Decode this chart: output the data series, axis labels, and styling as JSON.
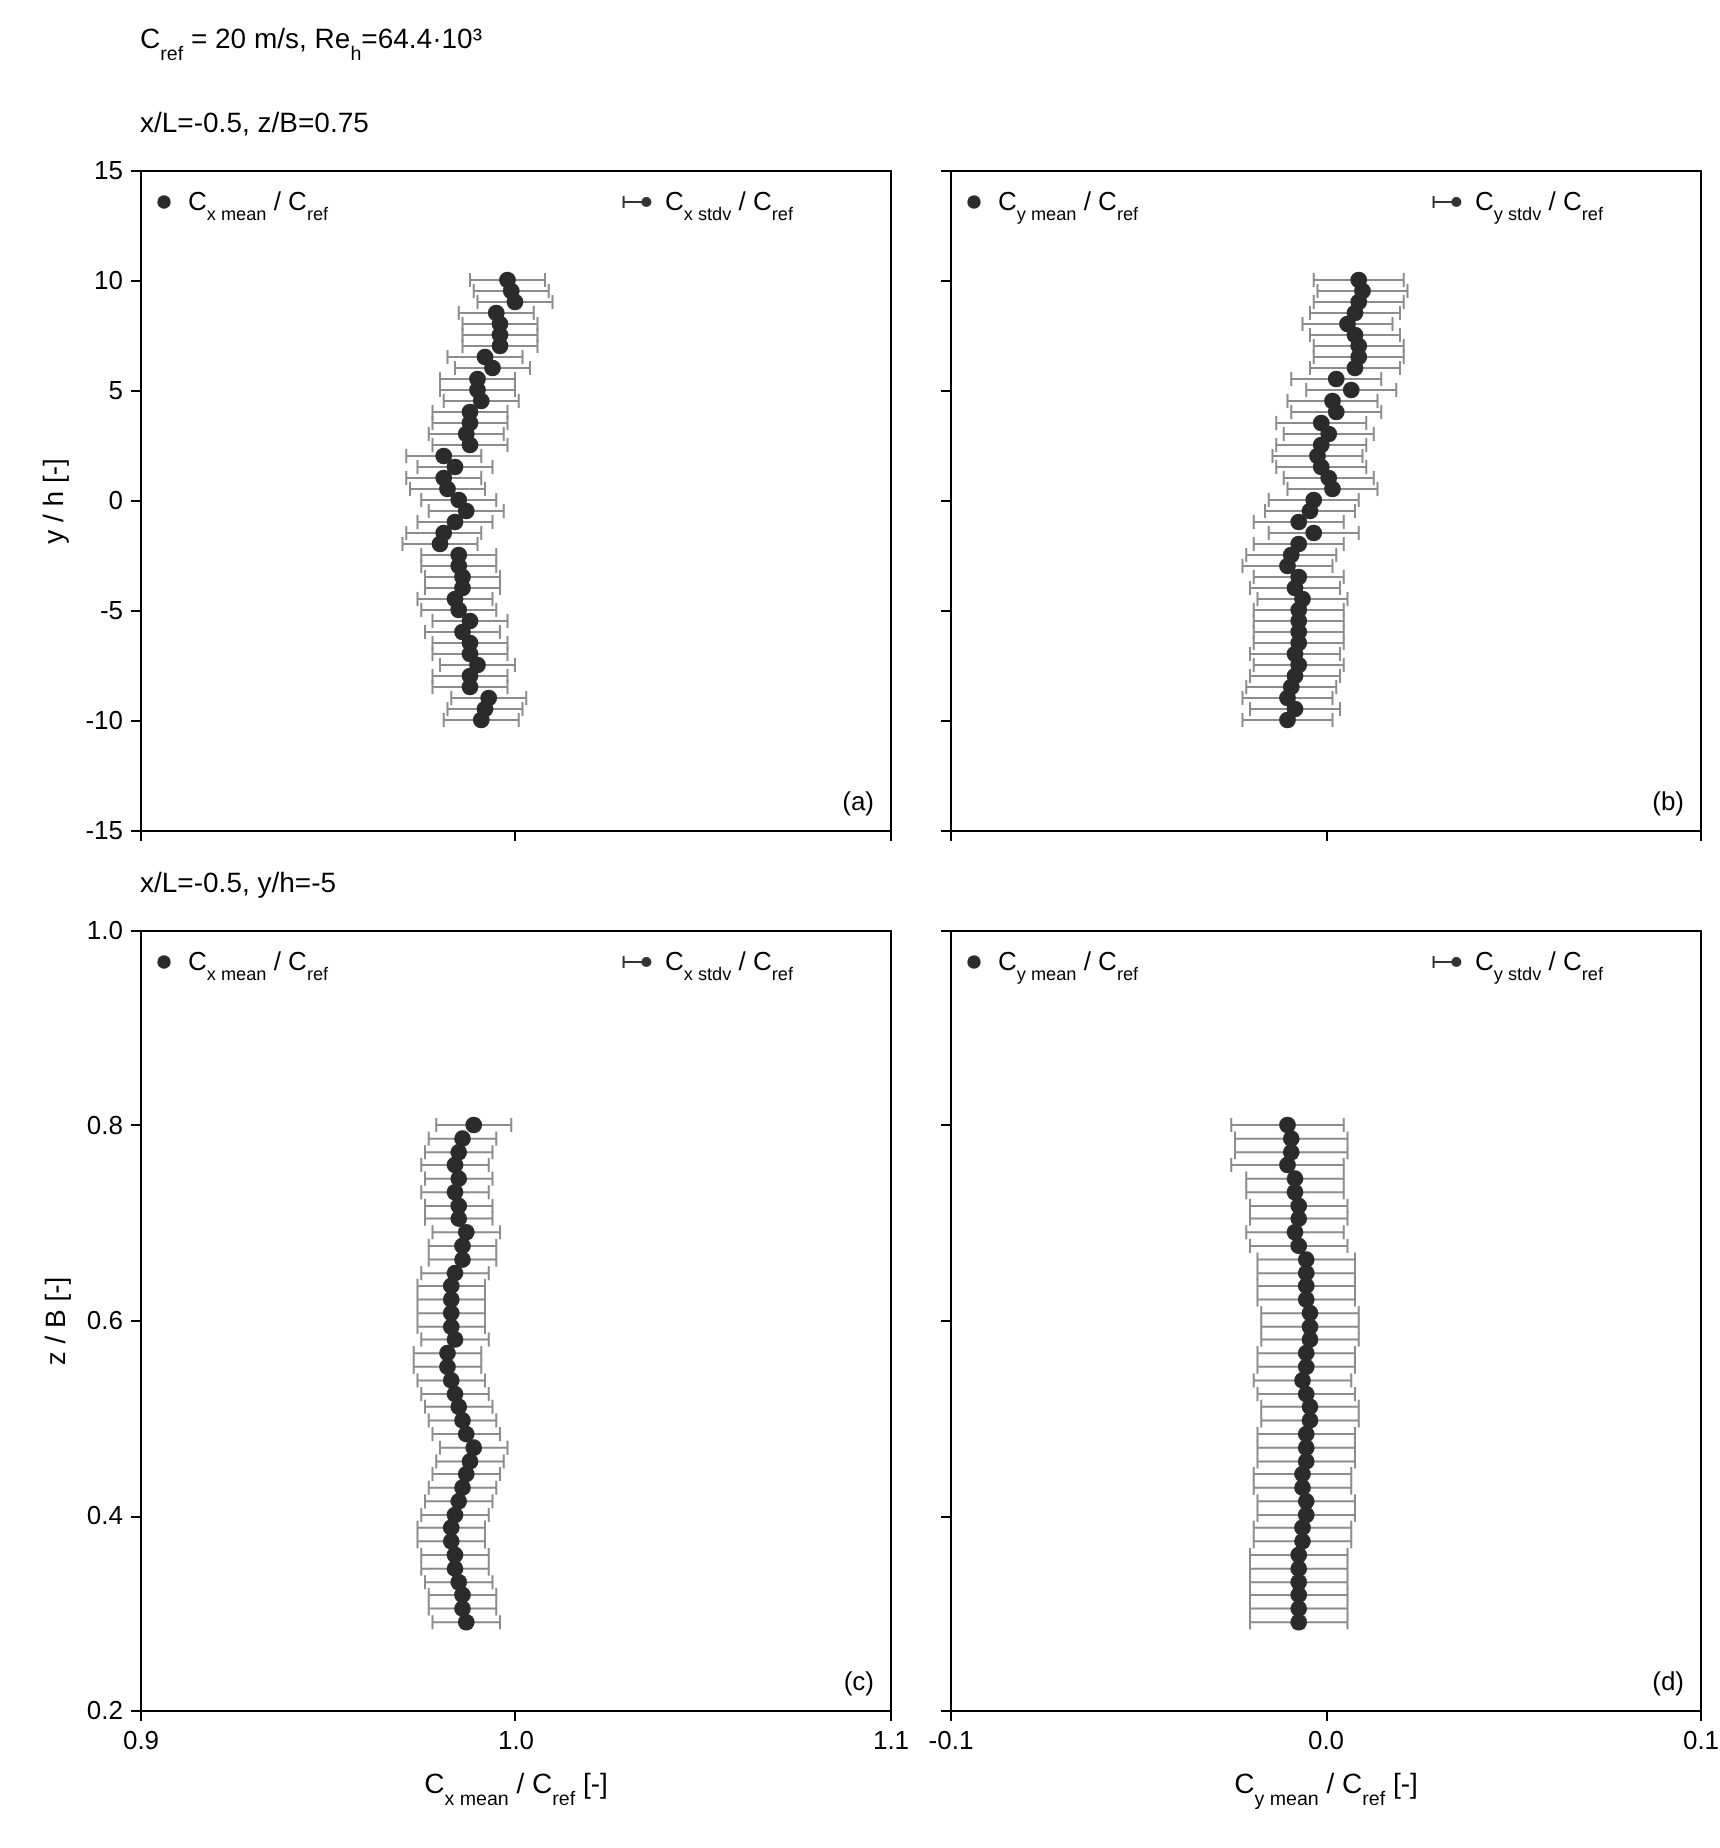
{
  "chart_data": [
    {
      "type": "scatter",
      "title": "C$_{ref}$ = 20 m/s, Re$_{h}$=64.4·10³",
      "subtitle": "x/L=-0.5, z/B=0.75",
      "ylabel": "y / h [-]",
      "xlim": [
        0.9,
        1.1
      ],
      "xticks": [
        0.9,
        1,
        1.1
      ],
      "ylim": [
        -15,
        15
      ],
      "yticks": [
        -15,
        -10,
        -5,
        0,
        5,
        10,
        15
      ],
      "tick_labels": "y",
      "grid": false,
      "legend": "top left",
      "marker": "circle",
      "series": [
        {
          "name": "C$_{x mean}$ / C$_{ref}$",
          "color": "#2b2b2b",
          "x": [
            0.998,
            0.999,
            1.0,
            0.995,
            0.996,
            0.996,
            0.996,
            0.992,
            0.994,
            0.99,
            0.99,
            0.991,
            0.988,
            0.988,
            0.987,
            0.988,
            0.981,
            0.984,
            0.981,
            0.982,
            0.985,
            0.987,
            0.984,
            0.981,
            0.98,
            0.985,
            0.985,
            0.986,
            0.986,
            0.984,
            0.985,
            0.988,
            0.986,
            0.988,
            0.988,
            0.99,
            0.988,
            0.988,
            0.993,
            0.992,
            0.991
          ],
          "values": [
            10,
            9.5,
            9,
            8.5,
            8,
            7.5,
            7,
            6.5,
            6,
            5.5,
            5,
            4.5,
            4,
            3.5,
            3,
            2.5,
            2,
            1.5,
            1,
            0.5,
            0,
            -0.5,
            -1,
            -1.5,
            -2,
            -2.5,
            -3,
            -3.5,
            -4,
            -4.5,
            -5,
            -5.5,
            -6,
            -6.5,
            -7,
            -7.5,
            -8,
            -8.5,
            -9,
            -9.5,
            -10
          ],
          "xerrors": [
            0.01,
            0.01,
            0.01,
            0.01,
            0.01,
            0.01,
            0.01,
            0.01,
            0.01,
            0.01,
            0.01,
            0.01,
            0.01,
            0.01,
            0.01,
            0.01,
            0.01,
            0.01,
            0.01,
            0.01,
            0.01,
            0.01,
            0.01,
            0.01,
            0.01,
            0.01,
            0.01,
            0.01,
            0.01,
            0.01,
            0.01,
            0.01,
            0.01,
            0.01,
            0.01,
            0.01,
            0.01,
            0.01,
            0.01,
            0.01,
            0.01
          ]
        }
      ],
      "annotations": [
        "C$_{x stdv}$ / C$_{ref}$",
        "(a)"
      ]
    },
    {
      "type": "scatter",
      "xlim": [
        -0.1,
        0.1
      ],
      "xticks": [
        -0.1,
        0,
        0.1
      ],
      "ylim": [
        -15,
        15
      ],
      "yticks": [
        -15,
        -10,
        -5,
        0,
        5,
        10,
        15
      ],
      "tick_labels": false,
      "grid": false,
      "legend": "top left",
      "marker": "circle",
      "series": [
        {
          "name": "C$_{y mean}$ / C$_{ref}$",
          "color": "#2b2b2b",
          "x": [
            0.009,
            0.01,
            0.009,
            0.008,
            0.006,
            0.008,
            0.009,
            0.009,
            0.008,
            0.003,
            0.007,
            0.002,
            0.003,
            -0.001,
            0.001,
            -0.001,
            -0.002,
            -0.001,
            0.001,
            0.002,
            -0.003,
            -0.004,
            -0.007,
            -0.003,
            -0.007,
            -0.009,
            -0.01,
            -0.007,
            -0.008,
            -0.006,
            -0.007,
            -0.007,
            -0.007,
            -0.007,
            -0.008,
            -0.007,
            -0.008,
            -0.009,
            -0.01,
            -0.008,
            -0.01
          ],
          "values": [
            10,
            9.5,
            9,
            8.5,
            8,
            7.5,
            7,
            6.5,
            6,
            5.5,
            5,
            4.5,
            4,
            3.5,
            3,
            2.5,
            2,
            1.5,
            1,
            0.5,
            0,
            -0.5,
            -1,
            -1.5,
            -2,
            -2.5,
            -3,
            -3.5,
            -4,
            -4.5,
            -5,
            -5.5,
            -6,
            -6.5,
            -7,
            -7.5,
            -8,
            -8.5,
            -9,
            -9.5,
            -10
          ],
          "xerrors": [
            0.012,
            0.012,
            0.012,
            0.012,
            0.012,
            0.012,
            0.012,
            0.012,
            0.012,
            0.012,
            0.012,
            0.012,
            0.012,
            0.012,
            0.012,
            0.012,
            0.012,
            0.012,
            0.012,
            0.012,
            0.012,
            0.012,
            0.012,
            0.012,
            0.012,
            0.012,
            0.012,
            0.012,
            0.012,
            0.012,
            0.012,
            0.012,
            0.012,
            0.012,
            0.012,
            0.012,
            0.012,
            0.012,
            0.012,
            0.012,
            0.012
          ]
        }
      ],
      "annotations": [
        "C$_{y stdv}$ / C$_{ref}$",
        "(b)"
      ]
    },
    {
      "type": "scatter",
      "title": "x/L=-0.5, y/h=-5",
      "xlabel": "C$_{x mean}$ / C$_{ref}$ [-]",
      "ylabel": "z / B [-]",
      "xlim": [
        0.9,
        1.1
      ],
      "xticks": [
        0.9,
        {
          "value": 1,
          "label": "1.0"
        },
        1.1
      ],
      "ylim": [
        0.2,
        1.0
      ],
      "yticks": [
        0.2,
        0.4,
        0.6,
        0.8,
        {
          "value": 1,
          "label": "1.0"
        }
      ],
      "grid": false,
      "legend": "top left",
      "marker": "circle",
      "series": [
        {
          "name": "C$_{x mean}$ / C$_{ref}$",
          "color": "#2b2b2b",
          "x": [
            0.989,
            0.986,
            0.985,
            0.984,
            0.985,
            0.984,
            0.985,
            0.985,
            0.987,
            0.986,
            0.986,
            0.984,
            0.983,
            0.983,
            0.983,
            0.983,
            0.984,
            0.982,
            0.982,
            0.983,
            0.984,
            0.985,
            0.986,
            0.987,
            0.989,
            0.988,
            0.987,
            0.986,
            0.985,
            0.984,
            0.983,
            0.983,
            0.984,
            0.984,
            0.985,
            0.986,
            0.986,
            0.987
          ],
          "values": [
            0.8,
            0.786,
            0.772,
            0.759,
            0.745,
            0.731,
            0.717,
            0.704,
            0.69,
            0.676,
            0.662,
            0.648,
            0.635,
            0.621,
            0.607,
            0.593,
            0.58,
            0.566,
            0.552,
            0.538,
            0.524,
            0.511,
            0.497,
            0.483,
            0.469,
            0.455,
            0.442,
            0.428,
            0.414,
            0.4,
            0.387,
            0.373,
            0.359,
            0.345,
            0.331,
            0.318,
            0.304,
            0.29
          ],
          "xerrors": [
            0.01,
            0.009,
            0.009,
            0.009,
            0.009,
            0.009,
            0.009,
            0.009,
            0.009,
            0.009,
            0.009,
            0.009,
            0.009,
            0.009,
            0.009,
            0.009,
            0.009,
            0.009,
            0.009,
            0.009,
            0.009,
            0.009,
            0.009,
            0.009,
            0.009,
            0.009,
            0.009,
            0.009,
            0.009,
            0.009,
            0.009,
            0.009,
            0.009,
            0.009,
            0.009,
            0.009,
            0.009,
            0.009
          ]
        }
      ],
      "annotations": [
        "C$_{x stdv}$ / C$_{ref}$",
        "(c)"
      ]
    },
    {
      "type": "scatter",
      "xlabel": "C$_{y mean}$ / C$_{ref}$ [-]",
      "xlim": [
        -0.1,
        0.1
      ],
      "xticks": [
        -0.1,
        {
          "value": 0,
          "label": "0.0"
        },
        0.1
      ],
      "ylim": [
        0.2,
        1.0
      ],
      "yticks": [
        0.2,
        0.4,
        0.6,
        0.8,
        1
      ],
      "tick_labels": "x",
      "grid": false,
      "legend": "top left",
      "marker": "circle",
      "series": [
        {
          "name": "C$_{y mean}$ / C$_{ref}$",
          "color": "#2b2b2b",
          "x": [
            -0.01,
            -0.009,
            -0.009,
            -0.01,
            -0.008,
            -0.008,
            -0.007,
            -0.007,
            -0.008,
            -0.007,
            -0.005,
            -0.005,
            -0.005,
            -0.005,
            -0.004,
            -0.004,
            -0.004,
            -0.005,
            -0.005,
            -0.006,
            -0.005,
            -0.004,
            -0.004,
            -0.005,
            -0.005,
            -0.005,
            -0.006,
            -0.006,
            -0.005,
            -0.005,
            -0.006,
            -0.006,
            -0.007,
            -0.007,
            -0.007,
            -0.007,
            -0.007,
            -0.007
          ],
          "values": [
            0.8,
            0.786,
            0.772,
            0.759,
            0.745,
            0.731,
            0.717,
            0.704,
            0.69,
            0.676,
            0.662,
            0.648,
            0.635,
            0.621,
            0.607,
            0.593,
            0.58,
            0.566,
            0.552,
            0.538,
            0.524,
            0.511,
            0.497,
            0.483,
            0.469,
            0.455,
            0.442,
            0.428,
            0.414,
            0.4,
            0.387,
            0.373,
            0.359,
            0.345,
            0.331,
            0.318,
            0.304,
            0.29
          ],
          "xerrors": [
            0.015,
            0.015,
            0.015,
            0.015,
            0.013,
            0.013,
            0.013,
            0.013,
            0.013,
            0.013,
            0.013,
            0.013,
            0.013,
            0.013,
            0.013,
            0.013,
            0.013,
            0.013,
            0.013,
            0.013,
            0.013,
            0.013,
            0.013,
            0.013,
            0.013,
            0.013,
            0.013,
            0.013,
            0.013,
            0.013,
            0.013,
            0.013,
            0.013,
            0.013,
            0.013,
            0.013,
            0.013,
            0.013
          ]
        }
      ],
      "annotations": [
        "C$_{y stdv}$ / C$_{ref}$",
        "(d)"
      ]
    }
  ]
}
